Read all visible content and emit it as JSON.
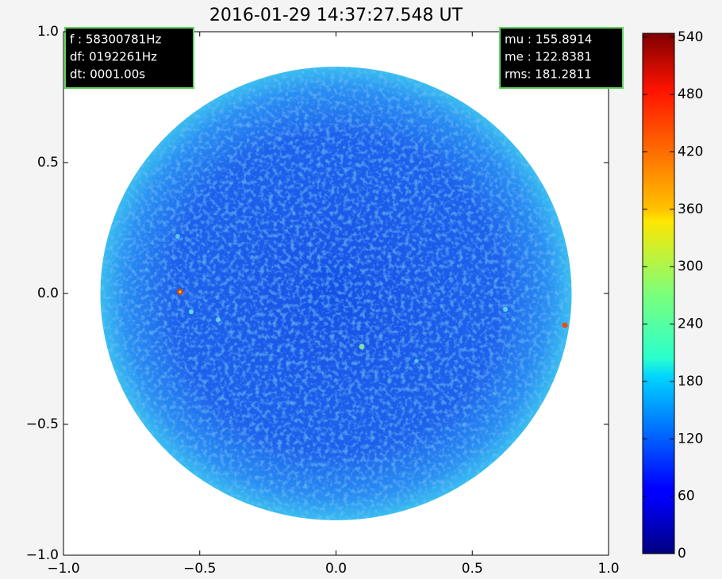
{
  "chart_data": {
    "type": "image",
    "title": "2016-01-29 14:37:27.548 UT",
    "xlim": [
      -1,
      1
    ],
    "ylim": [
      -1,
      1
    ],
    "xticks": [
      {
        "value": -1,
        "label": "−1.0"
      },
      {
        "value": -0.5,
        "label": "−0.5"
      },
      {
        "value": 0,
        "label": "0.0"
      },
      0.5,
      {
        "value": 1,
        "label": "1.0"
      }
    ],
    "yticks": [
      {
        "value": -1,
        "label": "−1.0"
      },
      {
        "value": -0.5,
        "label": "−0.5"
      },
      {
        "value": 0,
        "label": "0.0"
      },
      0.5,
      {
        "value": 1,
        "label": "1.0"
      }
    ],
    "annotations": {
      "left": [
        "f : 58300781Hz",
        "df: 0192261Hz",
        "dt: 0001.00s"
      ],
      "right": [
        "mu : 155.8914",
        "me : 122.8381",
        "rms: 181.2811"
      ]
    },
    "colorbar": {
      "cmap": "jet",
      "lim": [
        0,
        544
      ],
      "ticks": [
        0,
        60,
        120,
        180,
        240,
        300,
        360,
        420,
        480,
        540
      ]
    }
  }
}
